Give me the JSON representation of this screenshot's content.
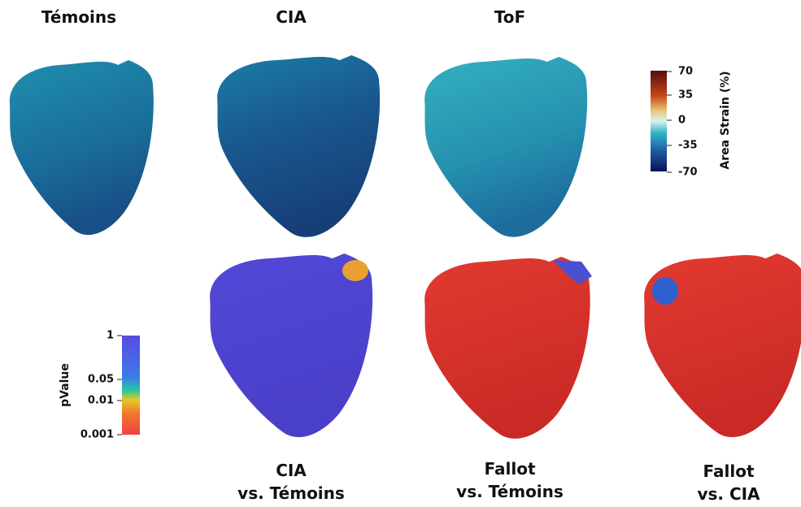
{
  "top_row": {
    "titles": [
      "Témoins",
      "CIA",
      "ToF"
    ]
  },
  "bottom_row": {
    "labels": [
      [
        "CIA",
        "vs. Témoins"
      ],
      [
        "Fallot",
        "vs. Témoins"
      ],
      [
        "Fallot",
        "vs. CIA"
      ]
    ]
  },
  "strain_colorbar": {
    "label": "Area Strain (%)",
    "ticks": [
      70,
      35,
      0,
      -35,
      -70
    ]
  },
  "pvalue_colorbar": {
    "label": "pValue",
    "ticks": [
      1,
      0.05,
      0.01,
      0.001
    ]
  }
}
